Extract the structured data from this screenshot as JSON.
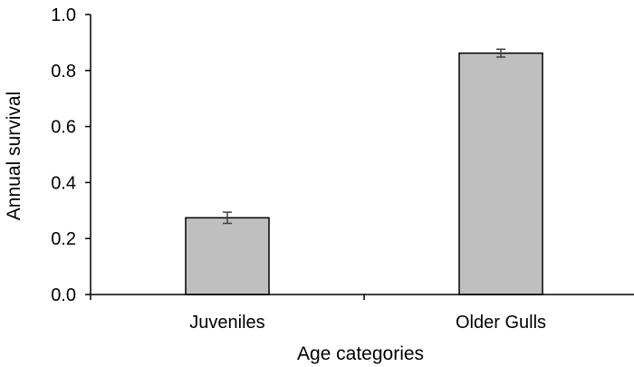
{
  "chart_data": {
    "type": "bar",
    "categories": [
      "Juveniles",
      "Older Gulls"
    ],
    "values": [
      0.274,
      0.862
    ],
    "error": [
      0.02,
      0.014
    ],
    "xlabel": "Age categories",
    "ylabel": "Annual survival",
    "ylim": [
      0,
      1.0
    ],
    "yticks": [
      "0.0",
      "0.2",
      "0.4",
      "0.6",
      "0.8",
      "1.0"
    ],
    "grid": false,
    "legend": "none",
    "colors": {
      "bar_fill": "#bfbfbf",
      "bar_stroke": "#000000",
      "axis": "#000000",
      "error_bar": "#404040"
    }
  }
}
